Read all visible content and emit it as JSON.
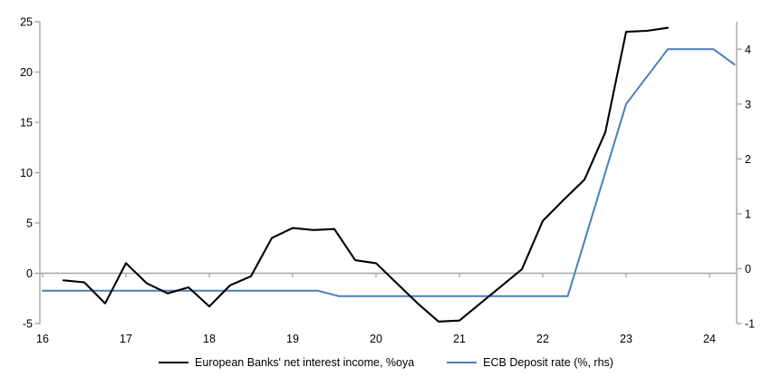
{
  "chart_data": {
    "type": "line",
    "title": "",
    "legend_position": "bottom",
    "grid": false,
    "background": "#ffffff",
    "axis_color": "#a6a6a6",
    "zero_line": {
      "show": true,
      "color": "#a6a6a6"
    },
    "x_axis": {
      "min": 16,
      "max": 24.33,
      "tick_labels": [
        "16",
        "17",
        "18",
        "19",
        "20",
        "21",
        "22",
        "23",
        "24"
      ],
      "tick_values": [
        16,
        17,
        18,
        19,
        20,
        21,
        22,
        23,
        24
      ]
    },
    "left_axis": {
      "min": -5,
      "max": 25,
      "tick_labels": [
        "25",
        "20",
        "15",
        "10",
        "5",
        "0",
        "-5"
      ],
      "tick_values": [
        25,
        20,
        15,
        10,
        5,
        0,
        -5
      ]
    },
    "right_axis": {
      "min": -1,
      "max": 4.5,
      "tick_labels": [
        "4",
        "3",
        "2",
        "1",
        "0",
        "-1"
      ],
      "tick_values": [
        4,
        3,
        2,
        1,
        0,
        -1
      ]
    },
    "series": [
      {
        "name": "European Banks' net interest income, %oya",
        "axis": "left",
        "color": "#000000",
        "width": 2.1,
        "points": [
          [
            16.25,
            -0.7
          ],
          [
            16.5,
            -0.9
          ],
          [
            16.75,
            -3.0
          ],
          [
            17.0,
            1.0
          ],
          [
            17.25,
            -1.0
          ],
          [
            17.5,
            -2.0
          ],
          [
            17.75,
            -1.4
          ],
          [
            18.0,
            -3.3
          ],
          [
            18.25,
            -1.2
          ],
          [
            18.5,
            -0.3
          ],
          [
            18.75,
            3.5
          ],
          [
            19.0,
            4.5
          ],
          [
            19.25,
            4.3
          ],
          [
            19.5,
            4.4
          ],
          [
            19.75,
            1.3
          ],
          [
            20.0,
            1.0
          ],
          [
            20.25,
            -1.0
          ],
          [
            20.5,
            -3.0
          ],
          [
            20.75,
            -4.8
          ],
          [
            21.0,
            -4.7
          ],
          [
            21.25,
            -3.0
          ],
          [
            21.5,
            -1.3
          ],
          [
            21.75,
            0.4
          ],
          [
            22.0,
            5.2
          ],
          [
            22.25,
            7.3
          ],
          [
            22.5,
            9.3
          ],
          [
            22.75,
            14.0
          ],
          [
            23.0,
            24.0
          ],
          [
            23.25,
            24.1
          ],
          [
            23.5,
            24.4
          ]
        ]
      },
      {
        "name": "ECB Deposit rate (%, rhs)",
        "axis": "right",
        "color": "#4a7ebb",
        "width": 2.0,
        "points": [
          [
            16.0,
            -0.4
          ],
          [
            19.3,
            -0.4
          ],
          [
            19.55,
            -0.5
          ],
          [
            22.3,
            -0.5
          ],
          [
            23.0,
            3.0
          ],
          [
            23.5,
            4.0
          ],
          [
            24.05,
            4.0
          ],
          [
            24.3,
            3.72
          ]
        ]
      }
    ]
  },
  "legend": {
    "items": [
      {
        "label": "European Banks' net interest income, %oya",
        "color": "#000000"
      },
      {
        "label": "ECB Deposit rate (%, rhs)",
        "color": "#4a7ebb"
      }
    ]
  }
}
